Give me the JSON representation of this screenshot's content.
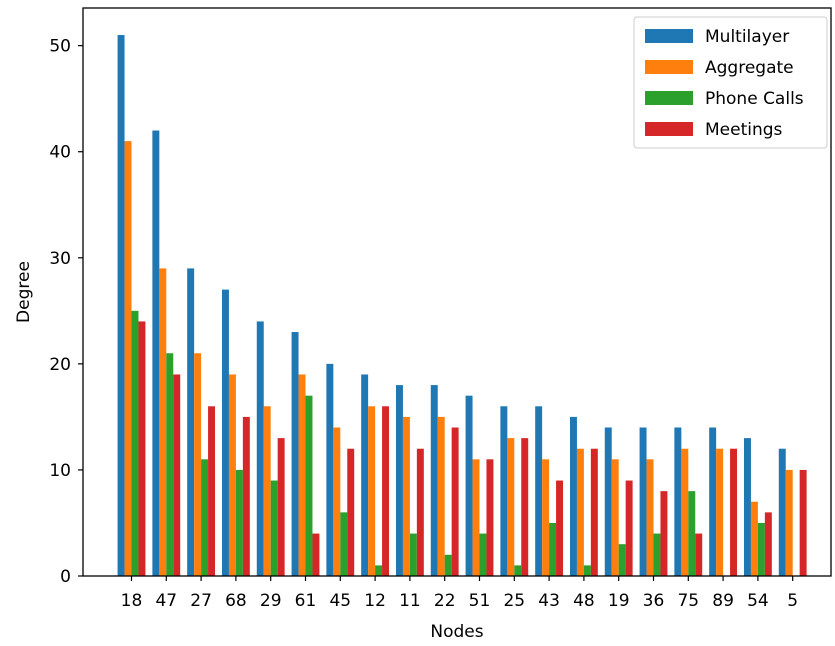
{
  "chart_data": {
    "type": "bar",
    "title": "",
    "xlabel": "Nodes",
    "ylabel": "Degree",
    "categories": [
      "18",
      "47",
      "27",
      "68",
      "29",
      "61",
      "45",
      "12",
      "11",
      "22",
      "51",
      "25",
      "43",
      "48",
      "19",
      "36",
      "75",
      "89",
      "54",
      "5"
    ],
    "series": [
      {
        "name": "Multilayer",
        "color": "#1f77b4",
        "values": [
          51,
          42,
          29,
          27,
          24,
          23,
          20,
          19,
          18,
          18,
          17,
          16,
          16,
          15,
          14,
          14,
          14,
          14,
          13,
          12
        ]
      },
      {
        "name": "Aggregate",
        "color": "#ff7f0e",
        "values": [
          41,
          29,
          21,
          19,
          16,
          19,
          14,
          16,
          15,
          15,
          11,
          13,
          11,
          12,
          11,
          11,
          12,
          12,
          7,
          10
        ]
      },
      {
        "name": "Phone Calls",
        "color": "#2ca02c",
        "values": [
          25,
          21,
          11,
          10,
          9,
          17,
          6,
          1,
          4,
          2,
          4,
          1,
          5,
          1,
          3,
          4,
          8,
          0,
          5,
          0
        ]
      },
      {
        "name": "Meetings",
        "color": "#d62728",
        "values": [
          24,
          19,
          16,
          15,
          13,
          4,
          12,
          16,
          12,
          14,
          11,
          13,
          9,
          12,
          9,
          8,
          4,
          12,
          6,
          10
        ]
      }
    ],
    "ylim": [
      0,
      53.55
    ],
    "yticks": [
      0,
      10,
      20,
      30,
      40,
      50
    ],
    "grid": false,
    "legend_position": "top-right"
  }
}
